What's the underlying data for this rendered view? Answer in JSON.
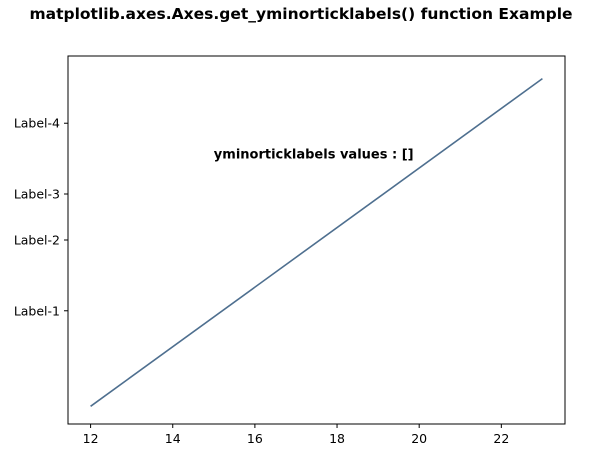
{
  "chart_data": {
    "type": "line",
    "title": "matplotlib.axes.Axes.get_yminorticklabels() function Example",
    "annotation": {
      "text": "yminorticklabels values : []",
      "x": 15,
      "y": 4.15
    },
    "xlabel": "",
    "ylabel": "",
    "xlim": [
      11.45,
      23.55
    ],
    "ylim": [
      0.4,
      5.6
    ],
    "x_ticks": [
      12,
      14,
      16,
      18,
      20,
      22
    ],
    "y_ticks": [
      {
        "value": 2.0,
        "label": "Label-1"
      },
      {
        "value": 3.0,
        "label": "Label-2"
      },
      {
        "value": 3.65,
        "label": "Label-3"
      },
      {
        "value": 4.65,
        "label": "Label-4"
      }
    ],
    "series": [
      {
        "x": [
          12,
          23
        ],
        "y": [
          0.65,
          5.28
        ],
        "color": "#4e6f8f"
      }
    ],
    "grid": false,
    "legend": false
  }
}
